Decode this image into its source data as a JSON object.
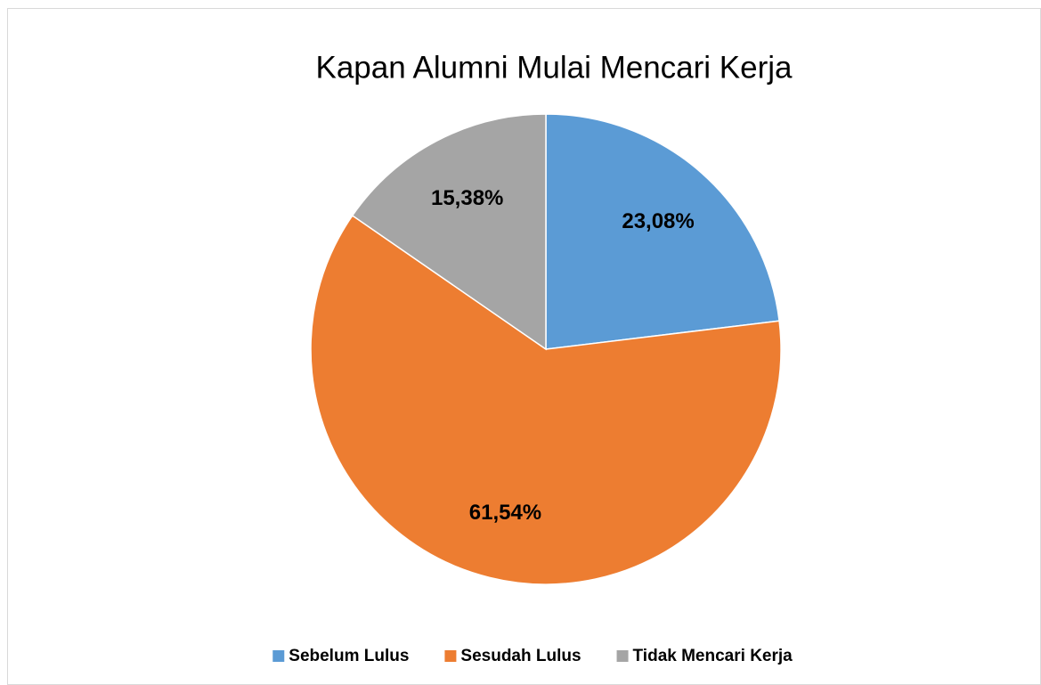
{
  "chart_data": {
    "type": "pie",
    "title": "Kapan Alumni Mulai Mencari Kerja",
    "categories": [
      "Sebelum Lulus",
      "Sesudah Lulus",
      "Tidak Mencari Kerja"
    ],
    "values": [
      23.08,
      61.54,
      15.38
    ],
    "value_labels": [
      "23,08%",
      "61,54%",
      "15,38%"
    ],
    "colors": [
      "#5b9bd5",
      "#ed7d31",
      "#a5a5a5"
    ],
    "legend": "bottom"
  }
}
